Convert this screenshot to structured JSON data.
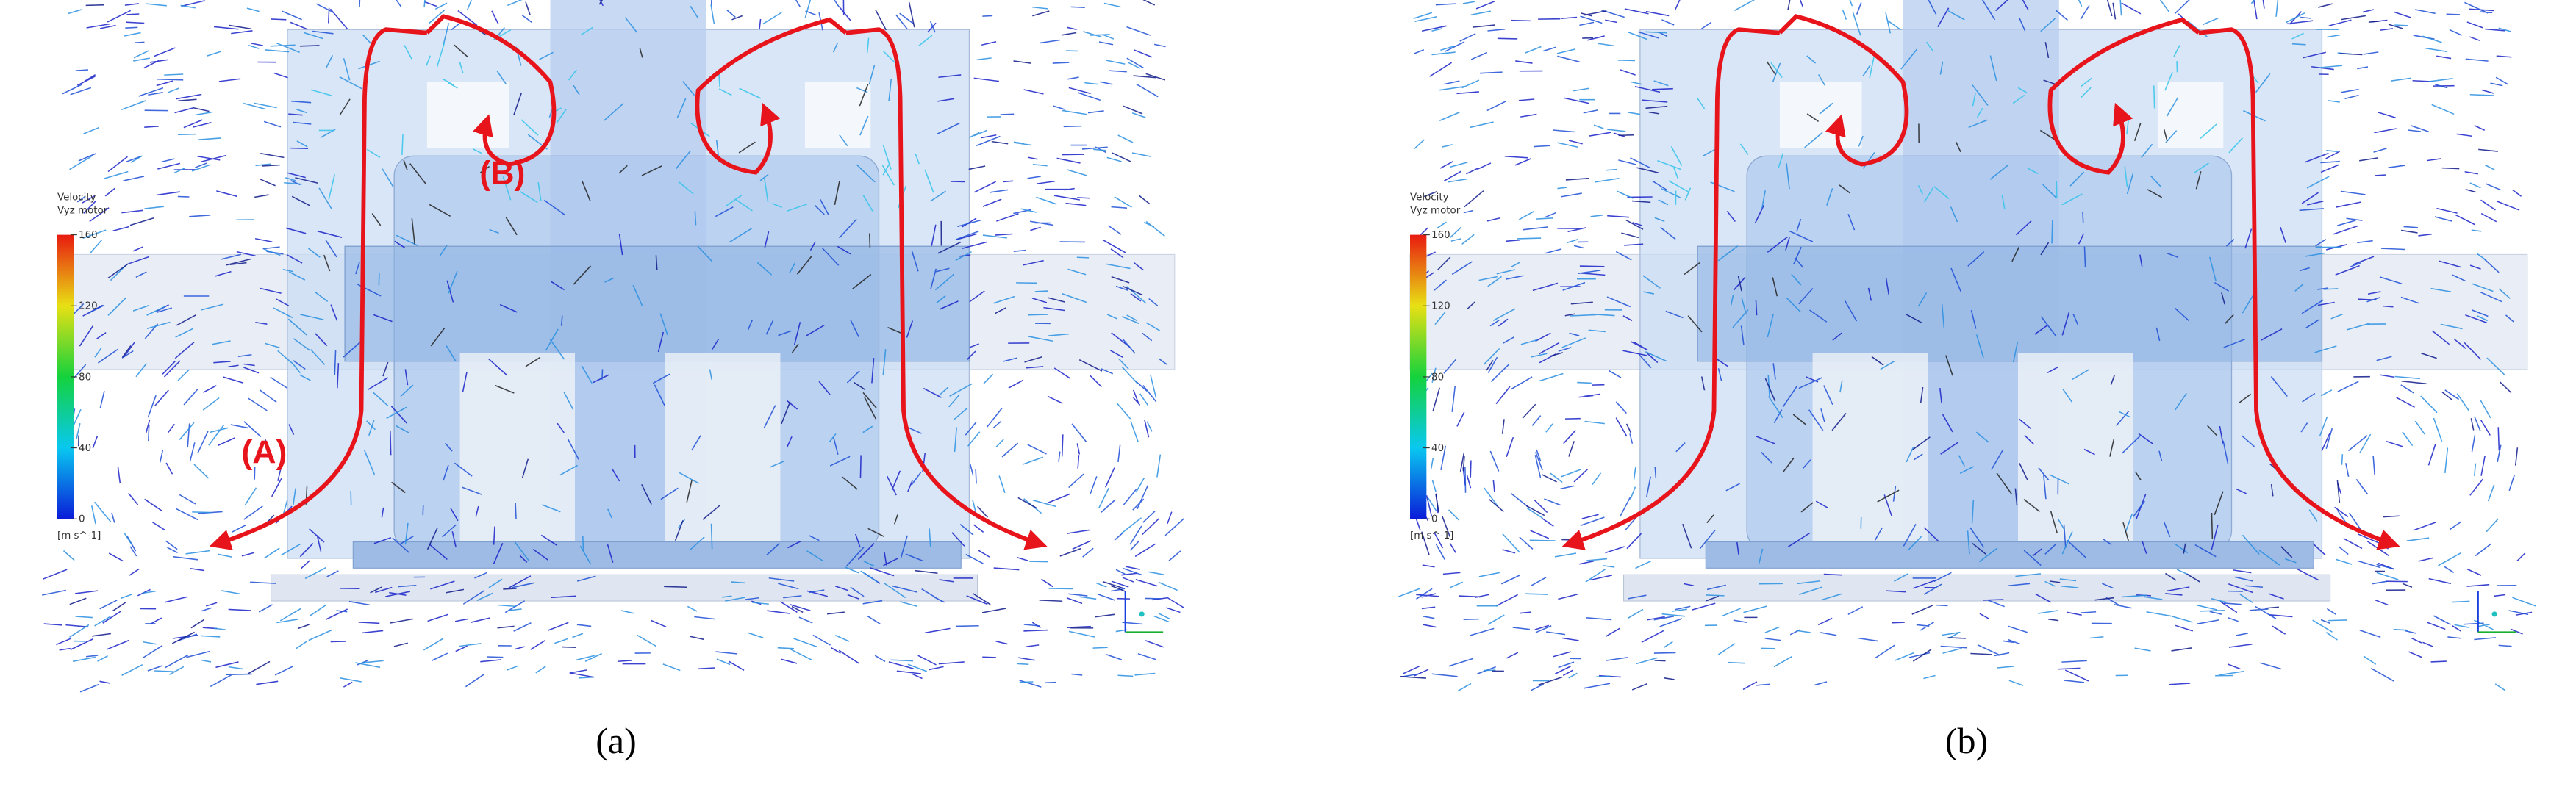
{
  "panels": [
    {
      "colorbar": {
        "title": "Velocity",
        "subtitle": "Vyz motor",
        "unit": "[m s^-1]",
        "range": [
          0,
          160
        ],
        "ticks": [
          0,
          40,
          80,
          120,
          160
        ]
      },
      "annotations": [
        "(A)",
        "(B)"
      ],
      "caption": "(a)"
    },
    {
      "colorbar": {
        "title": "Velocity",
        "subtitle": "Vyz motor",
        "unit": "[m s^-1]",
        "range": [
          0,
          160
        ],
        "ticks": [
          0,
          40,
          80,
          120,
          160
        ]
      },
      "caption": "(b)"
    }
  ]
}
